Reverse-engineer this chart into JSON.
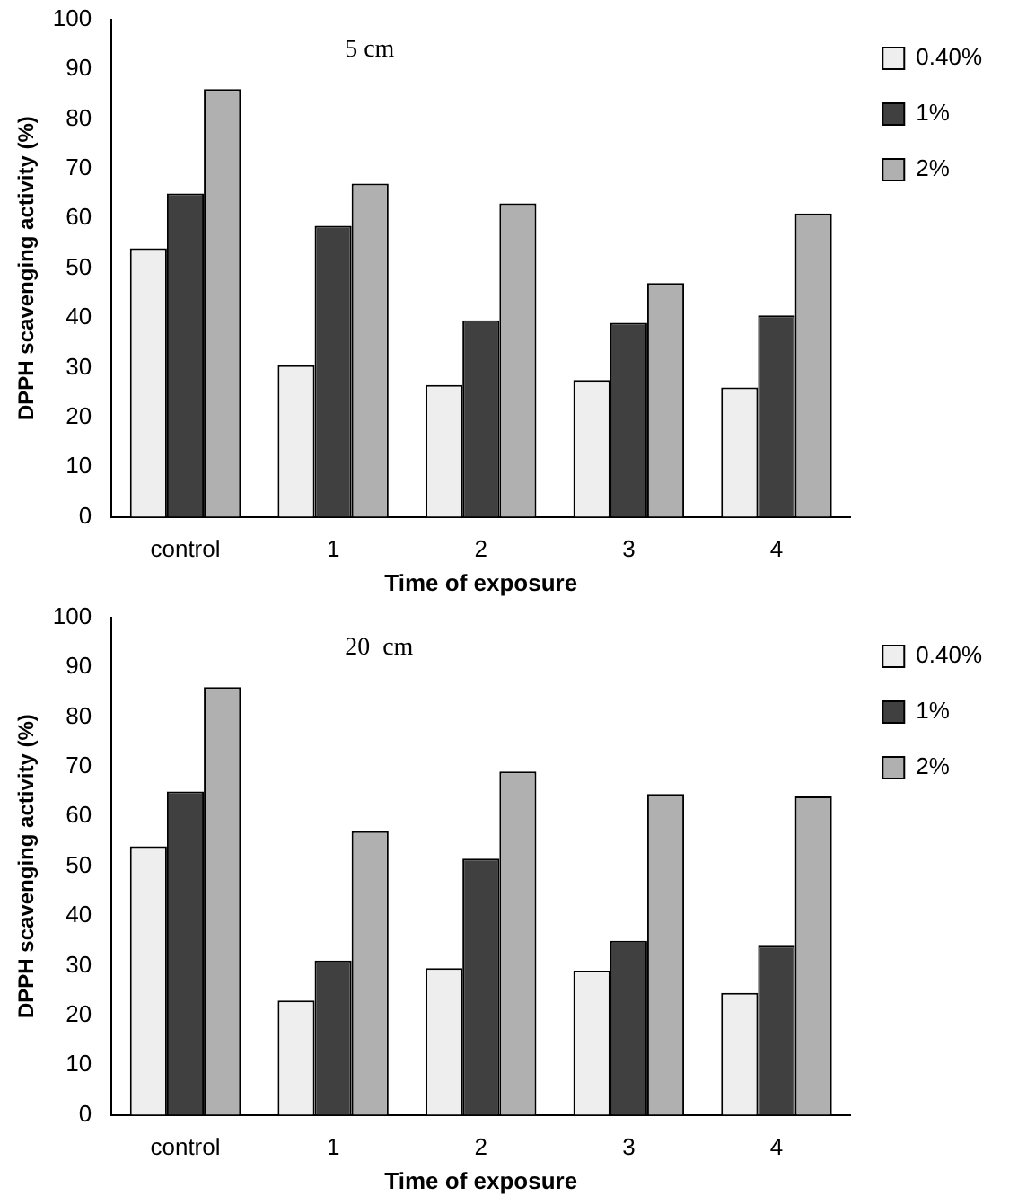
{
  "chart_data": [
    {
      "type": "bar",
      "annotations": [
        "5 cm"
      ],
      "xlabel": "Time of exposure",
      "ylabel": "DPPH scavenging activity (%)",
      "categories": [
        "control",
        "1",
        "2",
        "3",
        "4"
      ],
      "series": [
        {
          "name": "0.40%",
          "color": "#eeeeee",
          "values": [
            54,
            30.5,
            26.5,
            27.5,
            26
          ]
        },
        {
          "name": "1%",
          "color": "#404040",
          "values": [
            65,
            58.5,
            39.5,
            39,
            40.5
          ]
        },
        {
          "name": "2%",
          "color": "#b0b0b0",
          "values": [
            86,
            67,
            63,
            47,
            61
          ]
        }
      ],
      "ylim": [
        0,
        100
      ],
      "yticks": [
        0,
        10,
        20,
        30,
        40,
        50,
        60,
        70,
        80,
        90,
        100
      ],
      "grid": false,
      "legend": "top right"
    },
    {
      "type": "bar",
      "annotations": [
        "20  cm"
      ],
      "xlabel": "Time of exposure",
      "ylabel": "DPPH scavenging activity (%)",
      "categories": [
        "control",
        "1",
        "2",
        "3",
        "4"
      ],
      "series": [
        {
          "name": "0.40%",
          "color": "#eeeeee",
          "values": [
            54,
            23,
            29.5,
            29,
            24.5
          ]
        },
        {
          "name": "1%",
          "color": "#404040",
          "values": [
            65,
            31,
            51.5,
            35,
            34
          ]
        },
        {
          "name": "2%",
          "color": "#b0b0b0",
          "values": [
            86,
            57,
            69,
            64.5,
            64
          ]
        }
      ],
      "ylim": [
        0,
        100
      ],
      "yticks": [
        0,
        10,
        20,
        30,
        40,
        50,
        60,
        70,
        80,
        90,
        100
      ],
      "grid": false,
      "legend": "top right"
    }
  ]
}
